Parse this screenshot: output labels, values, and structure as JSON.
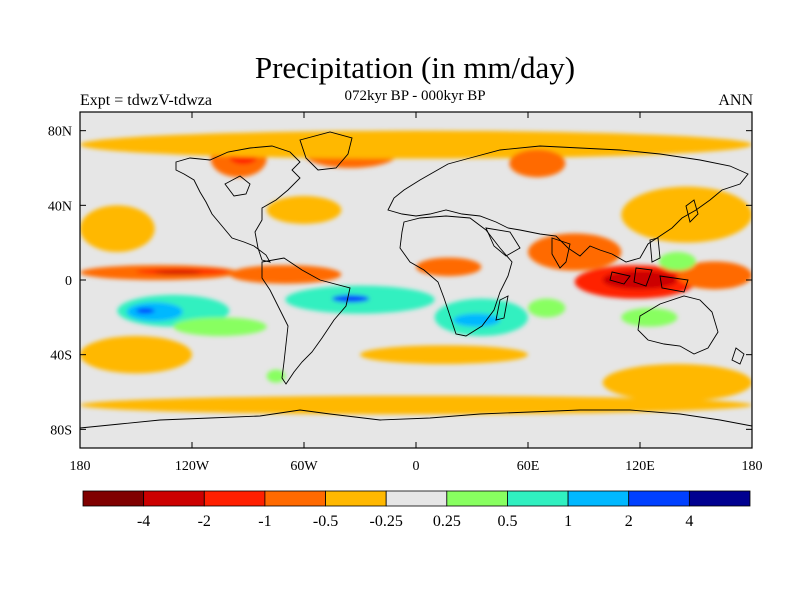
{
  "title": "Precipitation (in mm/day)",
  "subtitle": "072kyr BP - 000kyr BP",
  "left_label": "Expt = tdwzV-tdwza",
  "right_label": "ANN",
  "chart_data": {
    "type": "map",
    "projection": "cylindrical-equidistant",
    "lon_range": [
      -180,
      180
    ],
    "lat_range": [
      -90,
      90
    ],
    "x_ticks": [
      {
        "value": -180,
        "label": "180"
      },
      {
        "value": -120,
        "label": "120W"
      },
      {
        "value": -60,
        "label": "60W"
      },
      {
        "value": 0,
        "label": "0"
      },
      {
        "value": 60,
        "label": "60E"
      },
      {
        "value": 120,
        "label": "120E"
      },
      {
        "value": 180,
        "label": "180"
      }
    ],
    "y_ticks": [
      {
        "value": 80,
        "label": "80N"
      },
      {
        "value": 40,
        "label": "40N"
      },
      {
        "value": 0,
        "label": "0"
      },
      {
        "value": -40,
        "label": "40S"
      },
      {
        "value": -80,
        "label": "80S"
      }
    ],
    "colorbar": {
      "colors": [
        "#800000",
        "#cc0000",
        "#ff2000",
        "#ff6a00",
        "#ffb800",
        "#e6e6e6",
        "#88ff60",
        "#30f0c0",
        "#00b8ff",
        "#0040ff",
        "#000090"
      ],
      "levels": [
        "-4",
        "-2",
        "-1",
        "-0.5",
        "-0.25",
        "0.25",
        "0.5",
        "1",
        "2",
        "4"
      ]
    },
    "field_regions": [
      {
        "class": 3,
        "lon": [
          -180,
          -95
        ],
        "lat": [
          0,
          8
        ]
      },
      {
        "class": 2,
        "lon": [
          -150,
          -100
        ],
        "lat": [
          3,
          6
        ]
      },
      {
        "class": 1,
        "lon": [
          -140,
          -115
        ],
        "lat": [
          3,
          5
        ]
      },
      {
        "class": 3,
        "lon": [
          -100,
          -40
        ],
        "lat": [
          -2,
          8
        ]
      },
      {
        "class": 8,
        "lon": [
          -60,
          -35
        ],
        "lat": [
          -12,
          -5
        ]
      },
      {
        "class": 7,
        "lon": [
          -70,
          10
        ],
        "lat": [
          -18,
          -3
        ]
      },
      {
        "class": 9,
        "lon": [
          -45,
          -25
        ],
        "lat": [
          -12,
          -8
        ]
      },
      {
        "class": 7,
        "lon": [
          -160,
          -100
        ],
        "lat": [
          -25,
          -8
        ]
      },
      {
        "class": 8,
        "lon": [
          -155,
          -125
        ],
        "lat": [
          -22,
          -12
        ]
      },
      {
        "class": 9,
        "lon": [
          -150,
          -140
        ],
        "lat": [
          -18,
          -15
        ]
      },
      {
        "class": 6,
        "lon": [
          -130,
          -80
        ],
        "lat": [
          -30,
          -20
        ]
      },
      {
        "class": 7,
        "lon": [
          10,
          60
        ],
        "lat": [
          -30,
          -10
        ]
      },
      {
        "class": 8,
        "lon": [
          20,
          45
        ],
        "lat": [
          -25,
          -18
        ]
      },
      {
        "class": 6,
        "lon": [
          60,
          80
        ],
        "lat": [
          -20,
          -10
        ]
      },
      {
        "class": 3,
        "lon": [
          0,
          35
        ],
        "lat": [
          2,
          12
        ]
      },
      {
        "class": 2,
        "lon": [
          85,
          150
        ],
        "lat": [
          -10,
          8
        ]
      },
      {
        "class": 1,
        "lon": [
          100,
          140
        ],
        "lat": [
          -5,
          5
        ]
      },
      {
        "class": 3,
        "lon": [
          140,
          180
        ],
        "lat": [
          -5,
          10
        ]
      },
      {
        "class": 3,
        "lon": [
          60,
          110
        ],
        "lat": [
          5,
          25
        ]
      },
      {
        "class": 4,
        "lon": [
          110,
          180
        ],
        "lat": [
          20,
          50
        ]
      },
      {
        "class": 3,
        "lon": [
          -110,
          -80
        ],
        "lat": [
          55,
          75
        ]
      },
      {
        "class": 2,
        "lon": [
          -100,
          -85
        ],
        "lat": [
          62,
          70
        ]
      },
      {
        "class": 3,
        "lon": [
          -60,
          -10
        ],
        "lat": [
          60,
          75
        ]
      },
      {
        "class": 4,
        "lon": [
          -80,
          -40
        ],
        "lat": [
          30,
          45
        ]
      },
      {
        "class": 4,
        "lon": [
          -180,
          -120
        ],
        "lat": [
          -50,
          -30
        ]
      },
      {
        "class": 4,
        "lon": [
          -30,
          60
        ],
        "lat": [
          -45,
          -35
        ]
      },
      {
        "class": 4,
        "lon": [
          100,
          180
        ],
        "lat": [
          -65,
          -45
        ]
      },
      {
        "class": 4,
        "lon": [
          -180,
          180
        ],
        "lat": [
          -72,
          -62
        ]
      },
      {
        "class": 4,
        "lon": [
          -180,
          180
        ],
        "lat": [
          65,
          80
        ]
      },
      {
        "class": 6,
        "lon": [
          -80,
          -70
        ],
        "lat": [
          -55,
          -48
        ]
      },
      {
        "class": 6,
        "lon": [
          110,
          140
        ],
        "lat": [
          -25,
          -15
        ]
      },
      {
        "class": 4,
        "lon": [
          -180,
          -140
        ],
        "lat": [
          15,
          40
        ]
      },
      {
        "class": 3,
        "lon": [
          50,
          80
        ],
        "lat": [
          55,
          70
        ]
      },
      {
        "class": 6,
        "lon": [
          130,
          150
        ],
        "lat": [
          5,
          15
        ]
      }
    ]
  }
}
